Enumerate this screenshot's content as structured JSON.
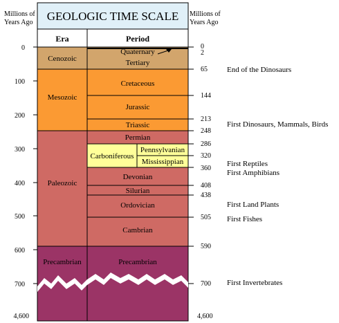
{
  "title": "GEOLOGIC TIME SCALE",
  "left_axis_label": [
    "Millions of",
    "Years Ago"
  ],
  "right_axis_label": [
    "Millions of",
    "Years Ago"
  ],
  "col_headers": {
    "era": "Era",
    "period": "Period"
  },
  "left_ticks": [
    "0",
    "100",
    "200",
    "300",
    "400",
    "500",
    "600",
    "700",
    "4,600"
  ],
  "right_ticks": [
    "0",
    "2",
    "65",
    "144",
    "213",
    "248",
    "286",
    "320",
    "360",
    "408",
    "438",
    "505",
    "590",
    "700",
    "4,600"
  ],
  "eras": [
    {
      "label": "Cenozoic",
      "color": "#d2a56c"
    },
    {
      "label": "Mesozoic",
      "color": "#fb9a33"
    },
    {
      "label": "Paleozoic",
      "color": "#cf6a64"
    },
    {
      "label": "Precambrian",
      "color": "#9b3466"
    }
  ],
  "periods": [
    {
      "label": "Quaternary"
    },
    {
      "label": "Tertiary"
    },
    {
      "label": "Cretaceous"
    },
    {
      "label": "Jurassic"
    },
    {
      "label": "Triassic"
    },
    {
      "label": "Permian"
    },
    {
      "label": "Carboniferous",
      "color": "#ffff99"
    },
    {
      "label": "Pennsylvanian",
      "color": "#ffff99"
    },
    {
      "label": "Mississippian",
      "color": "#ffff99"
    },
    {
      "label": "Devonian"
    },
    {
      "label": "Silurian"
    },
    {
      "label": "Ordovician"
    },
    {
      "label": "Cambrian"
    },
    {
      "label": "Precambrian"
    }
  ],
  "events": [
    "End of the Dinosaurs",
    "First Dinosaurs, Mammals, Birds",
    "First Reptiles",
    "First Amphibians",
    "First Land Plants",
    "First Fishes",
    "First Invertebrates"
  ],
  "colors": {
    "title_bg": "#e0f0f8",
    "tick_line": "#000000"
  }
}
